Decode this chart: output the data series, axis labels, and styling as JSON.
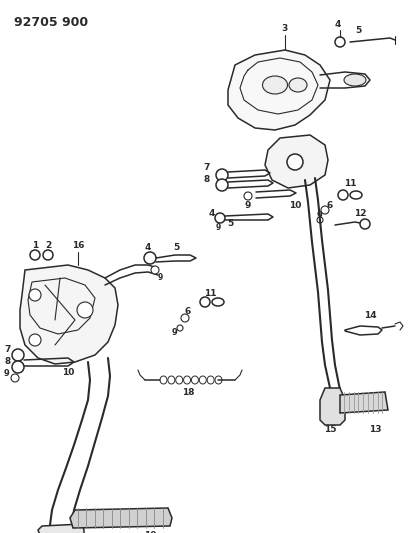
{
  "title": "92705 900",
  "bg_color": "#f0f0f0",
  "line_color": "#2a2a2a",
  "fig_width": 4.14,
  "fig_height": 5.33,
  "dpi": 100
}
